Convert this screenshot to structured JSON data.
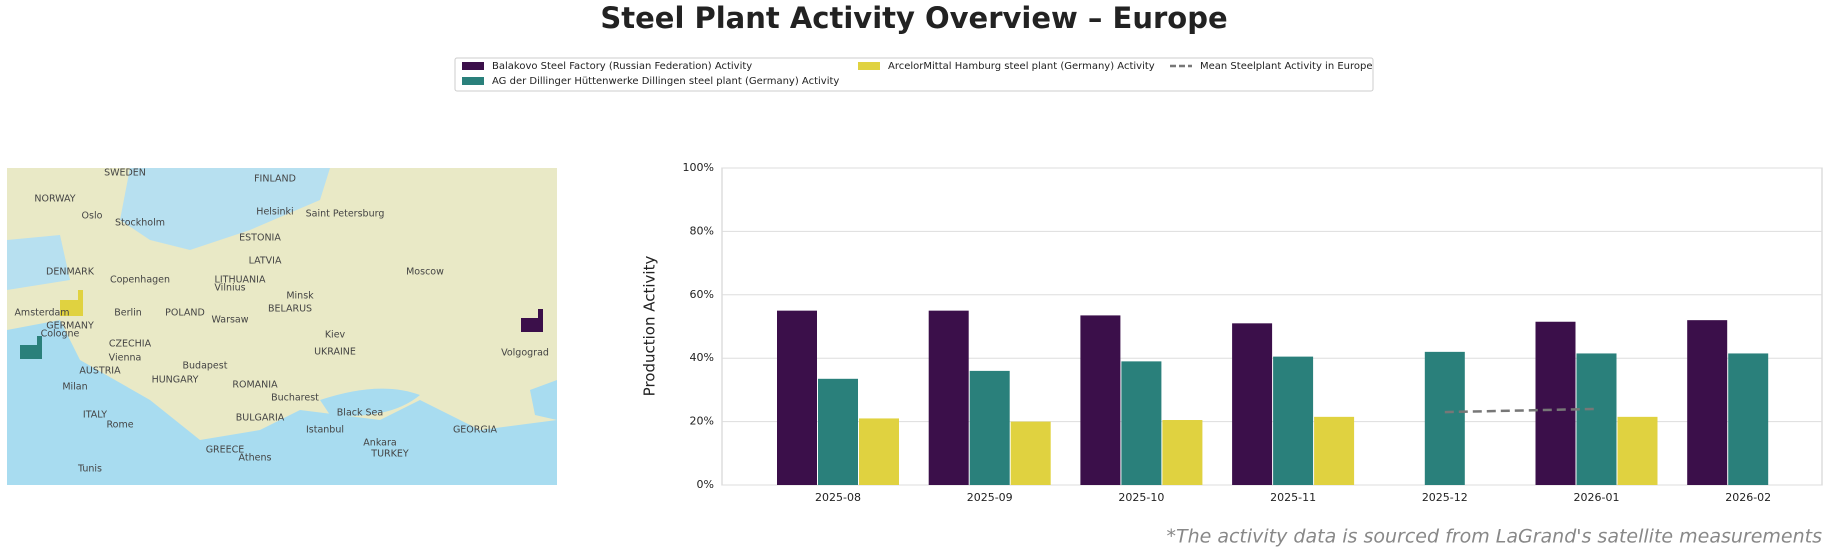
{
  "chart_data": {
    "type": "bar",
    "title": "Steel Plant Activity Overview – Europe",
    "ylabel": "Production Activity",
    "footnote": "*The activity data is sourced from LaGrand's satellite measurements",
    "categories": [
      "2025-08",
      "2025-09",
      "2025-10",
      "2025-11",
      "2025-12",
      "2026-01",
      "2026-02"
    ],
    "series": [
      {
        "name": "Balakovo Steel Factory (Russian Federation) Activity",
        "color": "#3b0f4a",
        "values": [
          55,
          55,
          53.5,
          51,
          null,
          51.5,
          52
        ]
      },
      {
        "name": "AG der Dillinger Hüttenwerke Dillingen steel plant (Germany) Activity",
        "color": "#2a807b",
        "values": [
          33.5,
          36,
          39,
          40.5,
          42,
          41.5,
          41.5
        ]
      },
      {
        "name": "ArcelorMittal Hamburg steel plant (Germany) Activity",
        "color": "#e0d240",
        "values": [
          21,
          20,
          20.5,
          21.5,
          null,
          21.5,
          null
        ]
      },
      {
        "name": "Mean Steelplant Activity in Europe",
        "color": "#777777",
        "type": "line",
        "values": [
          null,
          null,
          null,
          null,
          23,
          24,
          null
        ]
      }
    ],
    "ylim": [
      0,
      100
    ],
    "yticks": [
      {
        "value": 0,
        "label": "0%"
      },
      {
        "value": 20,
        "label": "20%"
      },
      {
        "value": 40,
        "label": "40%"
      },
      {
        "value": 60,
        "label": "60%"
      },
      {
        "value": 80,
        "label": "80%"
      },
      {
        "value": 100,
        "label": "100%"
      }
    ],
    "grid": true,
    "map_labels": [
      "SWEDEN",
      "FINLAND",
      "NORWAY",
      "Oslo",
      "Stockholm",
      "Helsinki",
      "Saint Petersburg",
      "ESTONIA",
      "LATVIA",
      "DENMARK",
      "Copenhagen",
      "LITHUANIA",
      "Vilnius",
      "Minsk",
      "Moscow",
      "Amsterdam",
      "Berlin",
      "POLAND",
      "Warsaw",
      "BELARUS",
      "GERMANY",
      "Cologne",
      "CZECHIA",
      "Kiev",
      "Vienna",
      "UKRAINE",
      "Volgograd",
      "AUSTRIA",
      "Budapest",
      "HUNGARY",
      "Milan",
      "ROMANIA",
      "Bucharest",
      "Black Sea",
      "ITALY",
      "Rome",
      "BULGARIA",
      "Istanbul",
      "GEORGIA",
      "GREECE",
      "Athens",
      "Ankara",
      "TURKEY",
      "Tunis"
    ]
  }
}
